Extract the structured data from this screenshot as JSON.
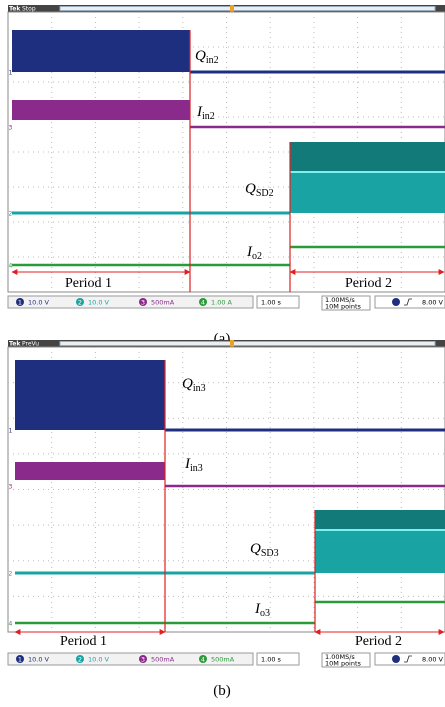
{
  "panels": [
    {
      "scope": {
        "brand": "Tek",
        "state": "Stop"
      },
      "signals": [
        {
          "main": "Q",
          "sub": "in2"
        },
        {
          "main": "I",
          "sub": "in2"
        },
        {
          "main": "Q",
          "sub": "SD2"
        },
        {
          "main": "I",
          "sub": "o2"
        }
      ],
      "periods": [
        "Period 1",
        "Period 2"
      ],
      "status": {
        "channels": [
          {
            "num": "1",
            "scale": "10.0 V"
          },
          {
            "num": "2",
            "scale": "10.0 V"
          },
          {
            "num": "3",
            "scale": "500mA"
          },
          {
            "num": "4",
            "scale": "1.00 A"
          }
        ],
        "timebase": "1.00 s",
        "rate": "1.00MS/s",
        "points": "10M points",
        "trigger": "8.00 V"
      },
      "caption": "(a)"
    },
    {
      "scope": {
        "brand": "Tek",
        "state": "PreVu"
      },
      "signals": [
        {
          "main": "Q",
          "sub": "in3"
        },
        {
          "main": "I",
          "sub": "in3"
        },
        {
          "main": "Q",
          "sub": "SD3"
        },
        {
          "main": "I",
          "sub": "o3"
        }
      ],
      "periods": [
        "Period 1",
        "Period 2"
      ],
      "status": {
        "channels": [
          {
            "num": "1",
            "scale": "10.0 V"
          },
          {
            "num": "2",
            "scale": "10.0 V"
          },
          {
            "num": "3",
            "scale": "500mA"
          },
          {
            "num": "4",
            "scale": "500mA"
          }
        ],
        "timebase": "1.00 s",
        "rate": "1.00MS/s",
        "points": "10M points",
        "trigger": "8.00 V"
      },
      "caption": "(b)"
    }
  ]
}
